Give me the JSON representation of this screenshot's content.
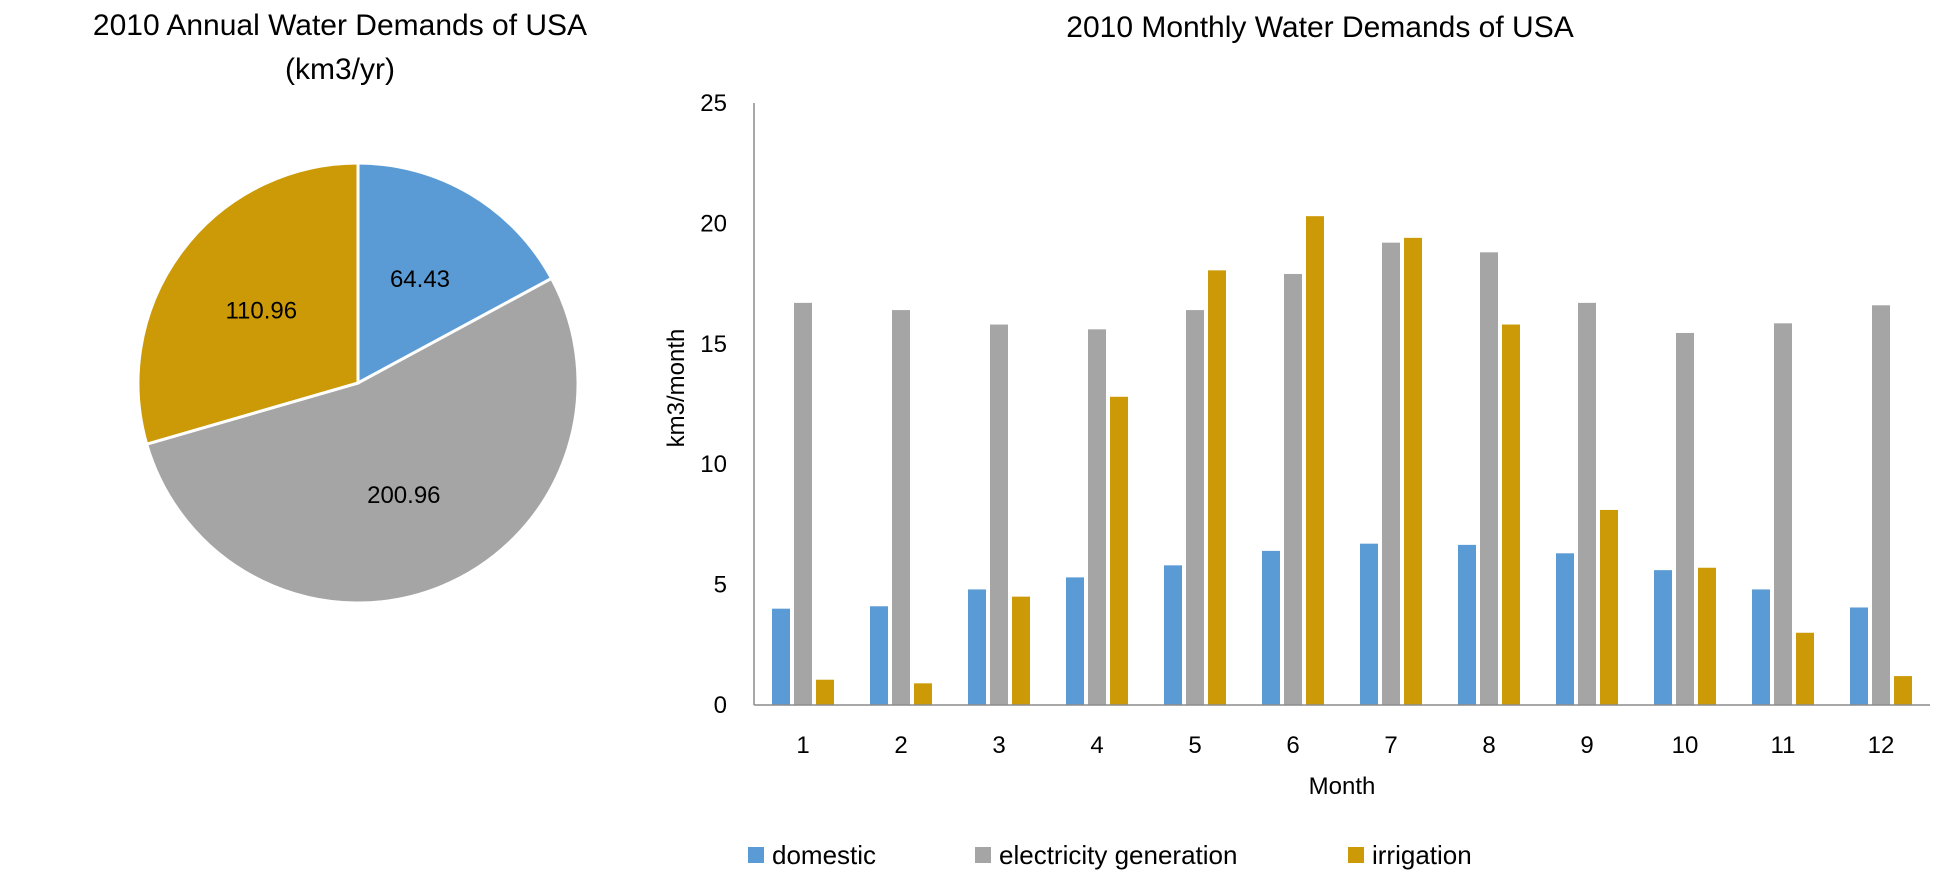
{
  "chart_data": [
    {
      "type": "pie",
      "title": "2010 Annual Water Demands of USA",
      "subtitle": "(km3/yr)",
      "labels": [
        "domestic",
        "electricity generation",
        "irrigation"
      ],
      "values": [
        64.43,
        200.96,
        110.96
      ],
      "value_labels": [
        "64.43",
        "200.96",
        "110.96"
      ],
      "colors": [
        "#5b9bd5",
        "#a5a5a5",
        "#cc9a06"
      ],
      "start": "12 o'clock",
      "direction": "clockwise"
    },
    {
      "type": "bar",
      "title": "2010 Monthly Water Demands of USA",
      "xlabel": "Month",
      "ylabel": "km3/month",
      "categories": [
        "1",
        "2",
        "3",
        "4",
        "5",
        "6",
        "7",
        "8",
        "9",
        "10",
        "11",
        "12"
      ],
      "ylim": [
        0,
        25
      ],
      "yticks": [
        "0",
        "5",
        "10",
        "15",
        "20",
        "25"
      ],
      "grid": false,
      "legend_position": "bottom",
      "series": [
        {
          "name": "domestic",
          "color": "#5b9bd5",
          "values": [
            4.0,
            4.1,
            4.8,
            5.3,
            5.8,
            6.4,
            6.7,
            6.65,
            6.3,
            5.6,
            4.8,
            4.05
          ]
        },
        {
          "name": "electricity generation",
          "color": "#a5a5a5",
          "values": [
            16.7,
            16.4,
            15.8,
            15.6,
            16.4,
            17.9,
            19.2,
            18.8,
            16.7,
            15.45,
            15.85,
            16.6
          ]
        },
        {
          "name": "irrigation",
          "color": "#cc9a06",
          "values": [
            1.05,
            0.9,
            4.5,
            12.8,
            18.05,
            20.3,
            19.4,
            15.8,
            8.1,
            5.7,
            3.0,
            1.2
          ]
        }
      ]
    }
  ]
}
